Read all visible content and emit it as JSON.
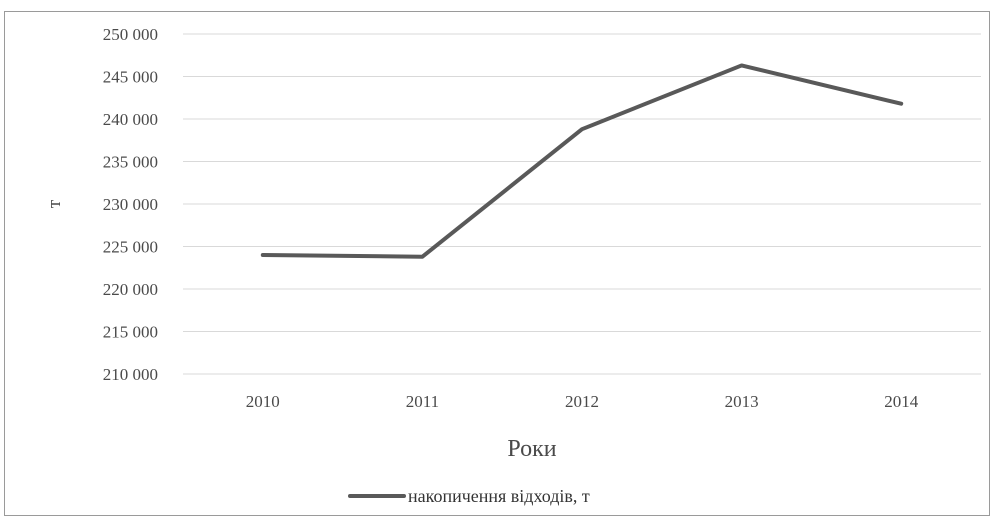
{
  "chart_data": {
    "type": "line",
    "title": "",
    "xlabel": "Роки",
    "ylabel": "т",
    "categories": [
      "2010",
      "2011",
      "2012",
      "2013",
      "2014"
    ],
    "series": [
      {
        "name": "накопичення відходів, т",
        "color": "#595959",
        "values": [
          224000,
          223800,
          238800,
          246300,
          241800
        ]
      }
    ],
    "ylim": [
      210000,
      250000
    ],
    "yticks": [
      210000,
      215000,
      220000,
      225000,
      230000,
      235000,
      240000,
      245000,
      250000
    ],
    "ytick_labels": [
      "210 000",
      "215 000",
      "220 000",
      "225 000",
      "230 000",
      "235 000",
      "240 000",
      "245 000",
      "250 000"
    ],
    "grid": true,
    "grid_color": "#d9d9d9",
    "legend_position": "bottom"
  }
}
